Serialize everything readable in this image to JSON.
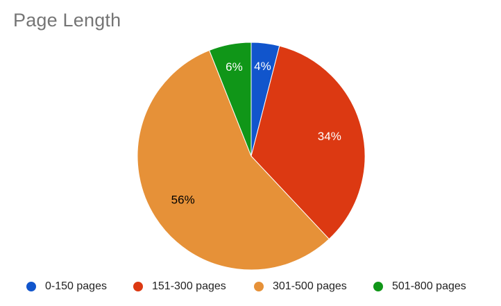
{
  "chart_data": {
    "type": "pie",
    "title": "Page Length",
    "categories": [
      "0-150 pages",
      "151-300 pages",
      "301-500 pages",
      "501-800 pages"
    ],
    "values": [
      4,
      34,
      56,
      6
    ],
    "value_labels": [
      "4%",
      "34%",
      "56%",
      "6%"
    ],
    "colors": [
      "#1155cc",
      "#dc3912",
      "#e69138",
      "#109618"
    ],
    "label_colors": [
      "#ffffff",
      "#ffffff",
      "#000000",
      "#ffffff"
    ],
    "legend_position": "bottom"
  }
}
